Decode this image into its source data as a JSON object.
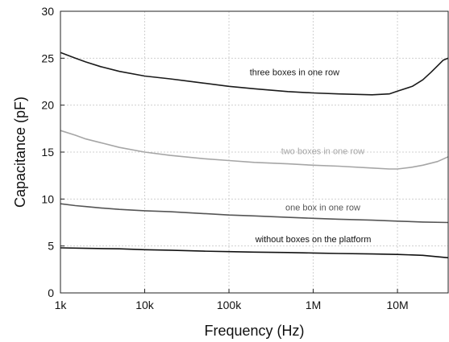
{
  "chart_data": {
    "type": "line",
    "title": "",
    "xlabel": "Frequency (Hz)",
    "ylabel": "Capacitance (pF)",
    "xscale": "log",
    "xlim": [
      1000,
      40000000
    ],
    "ylim": [
      0,
      30
    ],
    "xticks": [
      {
        "value": 1000,
        "label": "1k"
      },
      {
        "value": 10000,
        "label": "10k"
      },
      {
        "value": 100000,
        "label": "100k"
      },
      {
        "value": 1000000,
        "label": "1M"
      },
      {
        "value": 10000000,
        "label": "10M"
      }
    ],
    "yticks": [
      {
        "value": 0,
        "label": "0"
      },
      {
        "value": 5,
        "label": "5"
      },
      {
        "value": 10,
        "label": "10"
      },
      {
        "value": 15,
        "label": "15"
      },
      {
        "value": 20,
        "label": "20"
      },
      {
        "value": 25,
        "label": "25"
      },
      {
        "value": 30,
        "label": "30"
      }
    ],
    "grid": true,
    "series": [
      {
        "name": "three boxes in one row",
        "color": "#1a1a1a",
        "label_at": [
          600000,
          23.2
        ],
        "points": [
          [
            1000,
            25.6
          ],
          [
            1500,
            25.0
          ],
          [
            2000,
            24.6
          ],
          [
            3000,
            24.1
          ],
          [
            5000,
            23.6
          ],
          [
            10000,
            23.1
          ],
          [
            20000,
            22.8
          ],
          [
            30000,
            22.6
          ],
          [
            50000,
            22.35
          ],
          [
            100000,
            22.0
          ],
          [
            200000,
            21.75
          ],
          [
            500000,
            21.45
          ],
          [
            1000000,
            21.3
          ],
          [
            2000000,
            21.2
          ],
          [
            5000000,
            21.1
          ],
          [
            8000000,
            21.2
          ],
          [
            10000000,
            21.5
          ],
          [
            15000000,
            22.0
          ],
          [
            20000000,
            22.7
          ],
          [
            25000000,
            23.5
          ],
          [
            30000000,
            24.2
          ],
          [
            35000000,
            24.8
          ],
          [
            40000000,
            25.0
          ]
        ]
      },
      {
        "name": "two boxes in one row",
        "color": "#a6a6a6",
        "label_at": [
          1300000,
          14.8
        ],
        "points": [
          [
            1000,
            17.3
          ],
          [
            1500,
            16.8
          ],
          [
            2000,
            16.4
          ],
          [
            3000,
            16.0
          ],
          [
            5000,
            15.5
          ],
          [
            10000,
            15.0
          ],
          [
            20000,
            14.65
          ],
          [
            50000,
            14.3
          ],
          [
            100000,
            14.1
          ],
          [
            200000,
            13.9
          ],
          [
            500000,
            13.75
          ],
          [
            1000000,
            13.6
          ],
          [
            2000000,
            13.5
          ],
          [
            5000000,
            13.3
          ],
          [
            8000000,
            13.2
          ],
          [
            10000000,
            13.2
          ],
          [
            15000000,
            13.4
          ],
          [
            20000000,
            13.6
          ],
          [
            30000000,
            14.0
          ],
          [
            40000000,
            14.5
          ]
        ]
      },
      {
        "name": "one box in one row",
        "color": "#555555",
        "label_at": [
          1300000,
          8.8
        ],
        "points": [
          [
            1000,
            9.5
          ],
          [
            1500,
            9.3
          ],
          [
            2000,
            9.2
          ],
          [
            3000,
            9.05
          ],
          [
            5000,
            8.9
          ],
          [
            10000,
            8.75
          ],
          [
            20000,
            8.65
          ],
          [
            50000,
            8.45
          ],
          [
            100000,
            8.3
          ],
          [
            200000,
            8.2
          ],
          [
            500000,
            8.05
          ],
          [
            1000000,
            7.95
          ],
          [
            2000000,
            7.85
          ],
          [
            5000000,
            7.75
          ],
          [
            10000000,
            7.65
          ],
          [
            20000000,
            7.55
          ],
          [
            40000000,
            7.5
          ]
        ]
      },
      {
        "name": "without boxes on the platform",
        "color": "#111111",
        "label_at": [
          1000000,
          5.4
        ],
        "points": [
          [
            1000,
            4.8
          ],
          [
            2000,
            4.75
          ],
          [
            5000,
            4.7
          ],
          [
            10000,
            4.6
          ],
          [
            20000,
            4.55
          ],
          [
            50000,
            4.45
          ],
          [
            100000,
            4.4
          ],
          [
            200000,
            4.35
          ],
          [
            500000,
            4.3
          ],
          [
            1000000,
            4.25
          ],
          [
            2000000,
            4.2
          ],
          [
            5000000,
            4.15
          ],
          [
            10000000,
            4.1
          ],
          [
            20000000,
            4.0
          ],
          [
            30000000,
            3.85
          ],
          [
            40000000,
            3.75
          ]
        ]
      }
    ]
  }
}
